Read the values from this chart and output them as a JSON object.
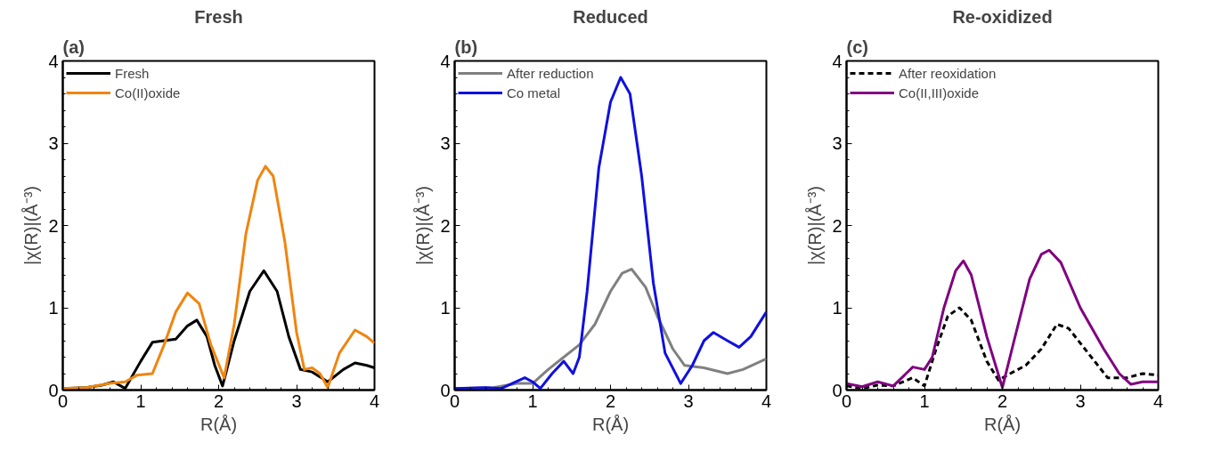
{
  "chart_data": [
    {
      "type": "line",
      "title": "Fresh",
      "annotations": [
        "(a)"
      ],
      "xlabel": "R(Å)",
      "ylabel": "|χ(R)|(Å⁻³)",
      "xlim": [
        0,
        4
      ],
      "ylim": [
        0,
        4
      ],
      "xticks": [
        0,
        1,
        2,
        3,
        4
      ],
      "yticks": [
        0,
        1,
        2,
        3,
        4
      ],
      "grid": false,
      "legend": "top left",
      "line_style": "solid",
      "series": [
        {
          "name": "Fresh",
          "color": "#000000",
          "x": [
            0,
            0.3,
            0.5,
            0.65,
            0.8,
            1.0,
            1.15,
            1.3,
            1.45,
            1.6,
            1.72,
            1.85,
            1.95,
            2.05,
            2.2,
            2.4,
            2.58,
            2.75,
            2.9,
            3.05,
            3.2,
            3.4,
            3.6,
            3.75,
            3.9,
            4.0
          ],
          "values": [
            0.02,
            0.03,
            0.06,
            0.1,
            0.02,
            0.35,
            0.58,
            0.6,
            0.62,
            0.78,
            0.85,
            0.65,
            0.3,
            0.05,
            0.6,
            1.2,
            1.45,
            1.2,
            0.65,
            0.25,
            0.22,
            0.1,
            0.25,
            0.33,
            0.3,
            0.27
          ]
        },
        {
          "name": "Co(II)oxide",
          "color": "#f0850f",
          "x": [
            0,
            0.3,
            0.6,
            0.8,
            0.95,
            1.15,
            1.3,
            1.45,
            1.6,
            1.75,
            1.9,
            2.07,
            2.2,
            2.35,
            2.5,
            2.6,
            2.7,
            2.85,
            3.0,
            3.1,
            3.2,
            3.3,
            3.4,
            3.55,
            3.75,
            3.9,
            4.0
          ],
          "values": [
            0.02,
            0.03,
            0.08,
            0.1,
            0.18,
            0.2,
            0.55,
            0.95,
            1.18,
            1.05,
            0.55,
            0.15,
            0.8,
            1.9,
            2.55,
            2.72,
            2.6,
            1.8,
            0.7,
            0.25,
            0.27,
            0.2,
            0.03,
            0.45,
            0.73,
            0.65,
            0.57
          ]
        }
      ]
    },
    {
      "type": "line",
      "title": "Reduced",
      "annotations": [
        "(b)"
      ],
      "xlabel": "R(Å)",
      "ylabel": "|χ(R)|(Å⁻³)",
      "xlim": [
        0,
        4
      ],
      "ylim": [
        0,
        4
      ],
      "xticks": [
        0,
        1,
        2,
        3,
        4
      ],
      "yticks": [
        0,
        1,
        2,
        3,
        4
      ],
      "grid": false,
      "legend": "top left",
      "line_style": "solid",
      "series": [
        {
          "name": "After reduction",
          "color": "#808080",
          "x": [
            0,
            0.5,
            0.8,
            1.0,
            1.2,
            1.4,
            1.6,
            1.8,
            2.0,
            2.15,
            2.27,
            2.45,
            2.6,
            2.8,
            2.95,
            3.2,
            3.5,
            3.7,
            4.0
          ],
          "values": [
            0.02,
            0.03,
            0.08,
            0.08,
            0.25,
            0.4,
            0.55,
            0.8,
            1.2,
            1.42,
            1.47,
            1.25,
            0.9,
            0.5,
            0.3,
            0.27,
            0.2,
            0.25,
            0.38
          ]
        },
        {
          "name": "Co metal",
          "color": "#1010e0",
          "x": [
            0,
            0.4,
            0.6,
            0.9,
            1.0,
            1.1,
            1.25,
            1.4,
            1.52,
            1.6,
            1.7,
            1.85,
            2.0,
            2.13,
            2.25,
            2.4,
            2.55,
            2.7,
            2.9,
            3.05,
            3.2,
            3.32,
            3.5,
            3.65,
            3.8,
            4.0
          ],
          "values": [
            0.02,
            0.03,
            0.02,
            0.15,
            0.1,
            0.02,
            0.2,
            0.35,
            0.2,
            0.4,
            1.2,
            2.7,
            3.5,
            3.8,
            3.6,
            2.6,
            1.3,
            0.45,
            0.08,
            0.3,
            0.6,
            0.7,
            0.6,
            0.52,
            0.65,
            0.95
          ]
        }
      ]
    },
    {
      "type": "line",
      "title": "Re-oxidized",
      "annotations": [
        "(c)"
      ],
      "xlabel": "R(Å)",
      "ylabel": "|χ(R)|(Å⁻³)",
      "xlim": [
        0,
        4
      ],
      "ylim": [
        0,
        4
      ],
      "xticks": [
        0,
        1,
        2,
        3,
        4
      ],
      "yticks": [
        0,
        1,
        2,
        3,
        4
      ],
      "grid": false,
      "legend": "top left",
      "series": [
        {
          "name": "After reoxidation",
          "color": "#000000",
          "line_style": "dashed",
          "x": [
            0,
            0.2,
            0.4,
            0.6,
            0.85,
            1.0,
            1.15,
            1.3,
            1.45,
            1.6,
            1.8,
            1.95,
            2.1,
            2.3,
            2.5,
            2.7,
            2.85,
            3.1,
            3.35,
            3.6,
            3.8,
            4.0
          ],
          "values": [
            0.05,
            0.02,
            0.06,
            0.05,
            0.15,
            0.05,
            0.5,
            0.9,
            1.0,
            0.85,
            0.35,
            0.12,
            0.2,
            0.3,
            0.5,
            0.8,
            0.75,
            0.45,
            0.15,
            0.15,
            0.2,
            0.18
          ]
        },
        {
          "name": "Co(II,III)oxide",
          "color": "#800080",
          "line_style": "solid",
          "x": [
            0,
            0.2,
            0.4,
            0.6,
            0.85,
            1.0,
            1.1,
            1.25,
            1.4,
            1.5,
            1.6,
            1.8,
            2.0,
            2.15,
            2.35,
            2.5,
            2.6,
            2.75,
            3.0,
            3.3,
            3.5,
            3.65,
            3.8,
            4.0
          ],
          "values": [
            0.08,
            0.04,
            0.1,
            0.05,
            0.28,
            0.25,
            0.4,
            1.0,
            1.45,
            1.57,
            1.4,
            0.65,
            0.03,
            0.6,
            1.35,
            1.65,
            1.7,
            1.55,
            1.0,
            0.5,
            0.2,
            0.07,
            0.1,
            0.1
          ]
        }
      ]
    }
  ]
}
